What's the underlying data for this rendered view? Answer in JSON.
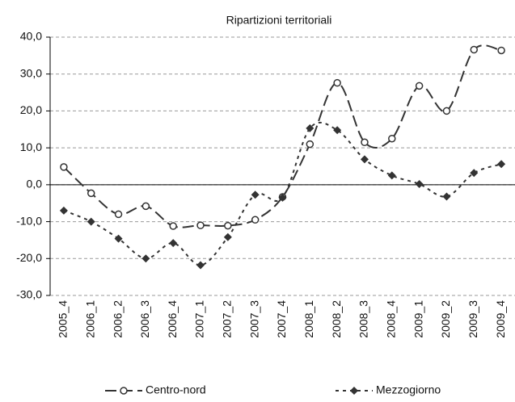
{
  "chart_data": {
    "type": "line",
    "title": "Ripartizioni territoriali",
    "categories": [
      "2005_4",
      "2006_1",
      "2006_2",
      "2006_3",
      "2006_4",
      "2007_1",
      "2007_2",
      "2007_3",
      "2007_4",
      "2008_1",
      "2008_2",
      "2008_3",
      "2008_4",
      "2009_1",
      "2009_2",
      "2009_3",
      "2009_4"
    ],
    "series": [
      {
        "name": "Centro-nord",
        "color": "#333333",
        "values": [
          4.8,
          -2.3,
          -8.0,
          -5.8,
          -11.2,
          -11.0,
          -11.1,
          -9.5,
          -3.3,
          11.0,
          27.6,
          11.5,
          12.5,
          26.8,
          20.0,
          36.6,
          36.4
        ]
      },
      {
        "name": "Mezzogiorno",
        "color": "#333333",
        "values": [
          -7.0,
          -10.0,
          -14.6,
          -20.0,
          -15.8,
          -21.8,
          -14.2,
          -2.7,
          -3.5,
          15.3,
          14.8,
          6.9,
          2.5,
          0.2,
          -3.2,
          3.2,
          5.6
        ]
      }
    ],
    "ylim": [
      -30,
      40
    ],
    "yticks": [
      {
        "value": -30,
        "label": "-30,0"
      },
      {
        "value": -20,
        "label": "-20,0"
      },
      {
        "value": -10,
        "label": "-10,0"
      },
      {
        "value": 0,
        "label": "0,0"
      },
      {
        "value": 10,
        "label": "10,0"
      },
      {
        "value": 20,
        "label": "20,0"
      },
      {
        "value": 30,
        "label": "30,0"
      },
      {
        "value": 40,
        "label": "40,0"
      }
    ],
    "grid": true
  }
}
